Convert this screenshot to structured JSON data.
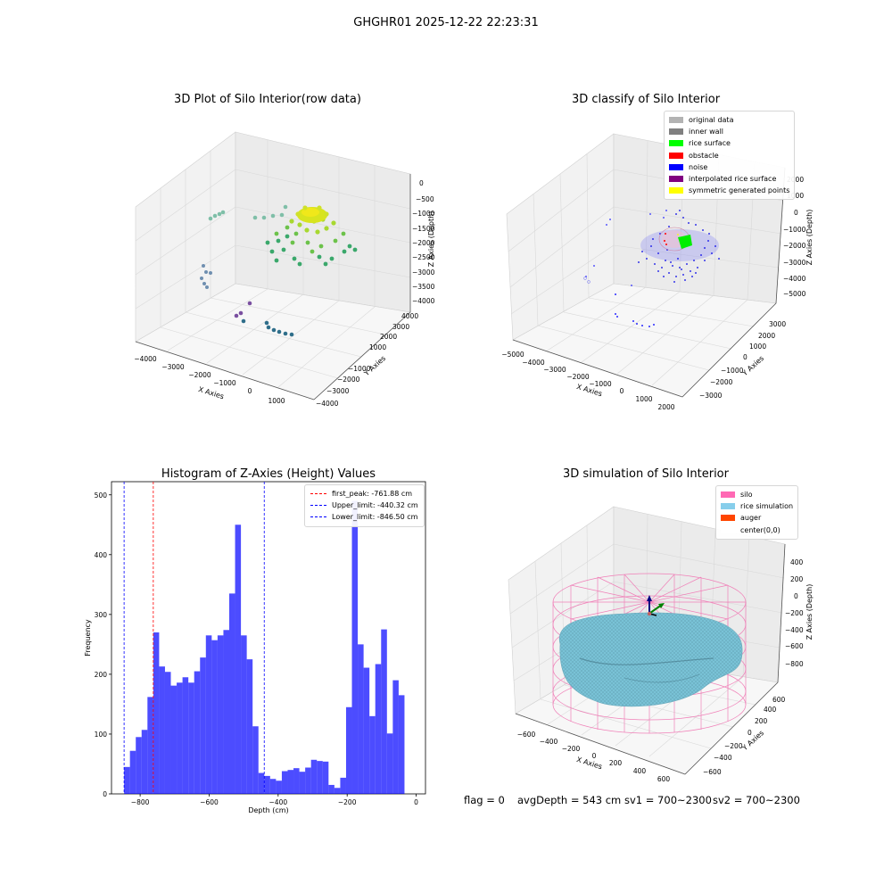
{
  "suptitle": "GHGHR01 2025-12-22 22:23:31",
  "chart_data": [
    {
      "type": "scatter",
      "title": "3D Plot of Silo Interior(row data)",
      "xlabel": "X Axies",
      "ylabel": "Y Axies",
      "zlabel": "Z Axies (Depth)",
      "xticks": [
        "−4000",
        "−3000",
        "−2000",
        "−1000",
        "0",
        "1000"
      ],
      "yticks": [
        "4000",
        "3000",
        "2000",
        "1000",
        "−1000",
        "−2000",
        "−3000",
        "−4000"
      ],
      "zticks": [
        "0",
        "−500",
        "−1000",
        "−1500",
        "−2000",
        "−2500",
        "−3000",
        "−3500",
        "−4000"
      ]
    },
    {
      "type": "scatter",
      "title": "3D classify of Silo Interior",
      "xlabel": "X Axies",
      "ylabel": "Y Axies",
      "zlabel": "Z Axies (Depth)",
      "xticks": [
        "−5000",
        "−4000",
        "−3000",
        "−2000",
        "−1000",
        "0",
        "1000",
        "2000"
      ],
      "yticks": [
        "3000",
        "2000",
        "1000",
        "0",
        "−1000",
        "−2000",
        "−3000"
      ],
      "zticks": [
        "2000",
        "1000",
        "0",
        "−1000",
        "−2000",
        "−3000",
        "−4000",
        "−5000"
      ],
      "legend": [
        {
          "label": "original data",
          "color": "#b3b3b3"
        },
        {
          "label": "inner wall",
          "color": "#808080"
        },
        {
          "label": "rice surface",
          "color": "#00ff00"
        },
        {
          "label": "obstacle",
          "color": "#ff0000"
        },
        {
          "label": "noise",
          "color": "#0000ff"
        },
        {
          "label": "interpolated rice surface",
          "color": "#800080"
        },
        {
          "label": "symmetric generated points",
          "color": "#ffff00"
        }
      ]
    },
    {
      "type": "bar",
      "title": "Histogram of Z-Axies (Height) Values",
      "xlabel": "Depth (cm)",
      "ylabel": "Frequency",
      "xlim": [
        -883,
        27
      ],
      "ylim": [
        0,
        522
      ],
      "bin_start": -846.5,
      "bin_width": 16.93,
      "values": [
        45,
        72,
        95,
        107,
        162,
        270,
        213,
        204,
        181,
        186,
        195,
        186,
        205,
        228,
        265,
        257,
        265,
        274,
        335,
        450,
        265,
        225,
        113,
        35,
        30,
        25,
        22,
        38,
        40,
        43,
        37,
        44,
        57,
        55,
        54,
        15,
        10,
        27,
        145,
        490,
        250,
        211,
        130,
        217,
        275,
        101,
        190,
        165
      ],
      "bar_color": "#0000ff",
      "xticks": [
        -800,
        -600,
        -400,
        -200,
        0
      ],
      "xtick_labels": [
        "−800",
        "−600",
        "−400",
        "−200",
        "0"
      ],
      "yticks": [
        0,
        100,
        200,
        300,
        400,
        500
      ],
      "ytick_labels": [
        "0",
        "100",
        "200",
        "300",
        "400",
        "500"
      ],
      "vlines": [
        {
          "x": -761.88,
          "color": "#ff0000",
          "label": "first_peak: -761.88 cm"
        },
        {
          "x": -440.32,
          "color": "#0000ff",
          "label": "Upper_limit: -440.32 cm"
        },
        {
          "x": -846.5,
          "color": "#0000ff",
          "label": "Lower_limit: -846.50 cm"
        }
      ],
      "legend_position": "top-right"
    },
    {
      "type": "surface",
      "title": "3D simulation of Silo Interior",
      "xlabel": "X Axies",
      "ylabel": "Y Axies",
      "zlabel": "Z Axies (Depth)",
      "xticks": [
        "−600",
        "−400",
        "−200",
        "0",
        "200",
        "400",
        "600"
      ],
      "yticks": [
        "600",
        "400",
        "200",
        "0",
        "−200",
        "−400",
        "−600"
      ],
      "zticks": [
        "400",
        "200",
        "0",
        "−200",
        "−400",
        "−600",
        "−800"
      ],
      "legend": [
        {
          "label": "silo",
          "color": "#ff69b4"
        },
        {
          "label": "rice simulation",
          "color": "#87ceeb"
        },
        {
          "label": "auger",
          "color": "#ff4500"
        },
        {
          "label": "center(0,0)",
          "color": "#ffffff"
        }
      ]
    }
  ],
  "status": {
    "flag": "flag = 0",
    "avg_depth": "avgDepth = 543 cm",
    "sv1": "sv1 = 700~2300",
    "sv2": "sv2 = 700~2300"
  }
}
